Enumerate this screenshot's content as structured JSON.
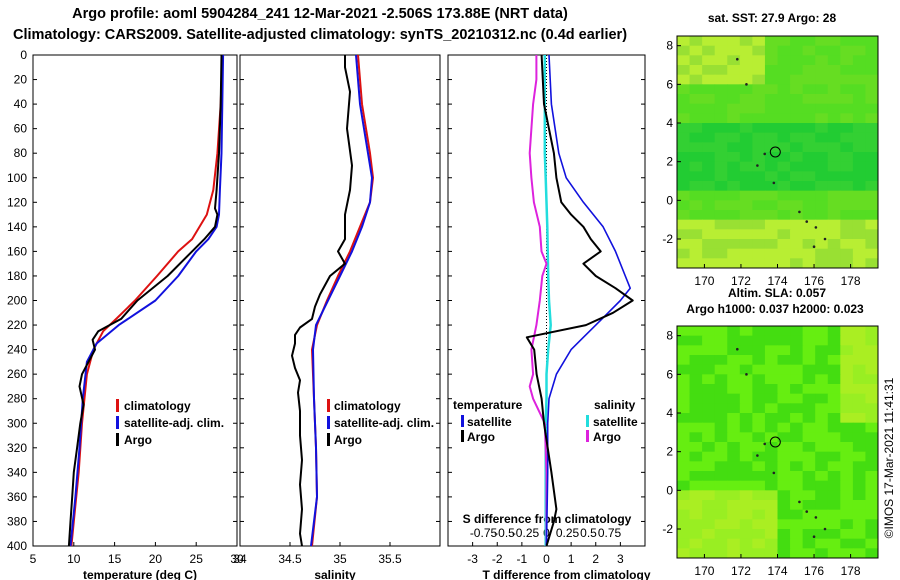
{
  "titles": {
    "line1": "Argo profile: aoml 5904284_241 12-Mar-2021 -2.506S 173.88E (NRT data)",
    "line2": "Climatology: CARS2009. Satellite-adjusted climatology: synTS_20210312.nc (0.4d earlier)"
  },
  "colors": {
    "climatology": "#dd1111",
    "satellite": "#1111dd",
    "argo": "#000000",
    "cyan": "#22dddd",
    "magenta": "#dd22dd",
    "map_green": "#22cc22",
    "map_light": "#99ee22"
  },
  "depth_axis": {
    "ticks": [
      0,
      20,
      40,
      60,
      80,
      100,
      120,
      140,
      160,
      180,
      200,
      220,
      240,
      260,
      280,
      300,
      320,
      340,
      360,
      380,
      400
    ],
    "range": [
      0,
      400
    ]
  },
  "chart_data": [
    {
      "type": "line",
      "panel": "temperature",
      "xlabel": "temperature (deg C)",
      "ylabel": "depth",
      "xlim": [
        5,
        30
      ],
      "ylim": [
        400,
        0
      ],
      "x_ticks": [
        "5",
        "10",
        "15",
        "20",
        "25",
        "30"
      ],
      "legend": [
        "climatology",
        "satellite-adj. clim.",
        "Argo"
      ],
      "series": [
        {
          "name": "climatology",
          "depth": [
            0,
            40,
            80,
            110,
            130,
            150,
            160,
            180,
            200,
            215,
            225,
            240,
            260,
            300,
            340,
            380,
            400
          ],
          "values": [
            28.2,
            28.0,
            27.6,
            27.1,
            26.3,
            24.5,
            22.8,
            20.2,
            17.5,
            15.2,
            13.6,
            12.4,
            11.6,
            11.0,
            10.6,
            10.0,
            9.7
          ]
        },
        {
          "name": "satellite-adj. clim.",
          "depth": [
            0,
            40,
            80,
            110,
            130,
            140,
            150,
            160,
            180,
            200,
            220,
            235,
            250,
            280,
            320,
            360,
            400
          ],
          "values": [
            28.3,
            28.2,
            28.1,
            27.9,
            27.8,
            27.5,
            26.5,
            25.0,
            22.8,
            20.0,
            15.5,
            12.8,
            11.6,
            11.1,
            10.7,
            10.2,
            9.6
          ]
        },
        {
          "name": "Argo",
          "depth": [
            0,
            40,
            80,
            110,
            125,
            130,
            140,
            150,
            160,
            180,
            200,
            215,
            225,
            232,
            240,
            250,
            260,
            270,
            285,
            300,
            320,
            340,
            360,
            380,
            400
          ],
          "values": [
            28.1,
            28.0,
            27.8,
            27.5,
            27.3,
            27.6,
            27.3,
            26.0,
            24.5,
            21.5,
            17.8,
            15.8,
            13.0,
            12.3,
            12.6,
            11.8,
            11.0,
            10.7,
            11.2,
            10.8,
            10.4,
            10.0,
            9.8,
            9.6,
            9.4
          ]
        }
      ]
    },
    {
      "type": "line",
      "panel": "salinity",
      "xlabel": "salinity",
      "ylabel": "depth",
      "xlim": [
        34,
        36
      ],
      "ylim": [
        400,
        0
      ],
      "x_ticks": [
        "34",
        "34.5",
        "35",
        "35.5"
      ],
      "legend": [
        "climatology",
        "satellite-adj. clim.",
        "Argo"
      ],
      "series": [
        {
          "name": "climatology",
          "depth": [
            0,
            40,
            80,
            100,
            120,
            140,
            160,
            180,
            200,
            220,
            240,
            280,
            320,
            360,
            400
          ],
          "values": [
            35.18,
            35.22,
            35.3,
            35.33,
            35.3,
            35.2,
            35.1,
            34.98,
            34.87,
            34.77,
            34.72,
            34.74,
            34.76,
            34.77,
            34.72
          ]
        },
        {
          "name": "satellite-adj. clim.",
          "depth": [
            0,
            40,
            80,
            100,
            120,
            140,
            160,
            180,
            200,
            220,
            240,
            280,
            320,
            360,
            400
          ],
          "values": [
            35.16,
            35.2,
            35.28,
            35.32,
            35.3,
            35.22,
            35.12,
            35.0,
            34.88,
            34.76,
            34.73,
            34.74,
            34.76,
            34.77,
            34.71
          ]
        },
        {
          "name": "Argo",
          "depth": [
            0,
            10,
            30,
            60,
            90,
            110,
            130,
            150,
            160,
            170,
            180,
            195,
            205,
            215,
            222,
            228,
            235,
            245,
            255,
            265,
            275,
            290,
            310,
            330,
            350,
            370,
            390,
            400
          ],
          "values": [
            35.05,
            35.05,
            35.1,
            35.07,
            35.12,
            35.1,
            35.05,
            35.05,
            34.98,
            35.05,
            34.9,
            34.8,
            34.75,
            34.72,
            34.6,
            34.55,
            34.55,
            34.52,
            34.55,
            34.6,
            34.58,
            34.6,
            34.6,
            34.62,
            34.6,
            34.62,
            34.6,
            34.62
          ]
        }
      ]
    },
    {
      "type": "line",
      "panel": "differences",
      "xlabel": "T difference from climatology",
      "x2label": "S difference from climatology",
      "ylabel": "depth",
      "xlim": [
        -4,
        4
      ],
      "ylim": [
        400,
        0
      ],
      "x_ticks": [
        "-3",
        "-2",
        "-1",
        "0",
        "1",
        "2",
        "3"
      ],
      "x2_ticks": [
        "-0.75",
        "-0.5",
        "-0.25",
        "0",
        "0.25",
        "0.5",
        "0.75"
      ],
      "legend_groups": {
        "temperature": [
          "satellite",
          "Argo"
        ],
        "salinity": [
          "satellite",
          "Argo"
        ]
      },
      "series": [
        {
          "name": "temperature satellite",
          "depth": [
            0,
            40,
            80,
            100,
            120,
            140,
            160,
            180,
            190,
            200,
            210,
            220,
            230,
            240,
            260,
            280,
            300,
            340,
            400
          ],
          "values": [
            0.1,
            0.2,
            0.5,
            0.8,
            1.5,
            2.3,
            2.8,
            3.2,
            3.4,
            3.0,
            2.5,
            2.0,
            1.5,
            1.0,
            0.4,
            0.1,
            0.05,
            0.05,
            0.0
          ]
        },
        {
          "name": "temperature Argo",
          "depth": [
            0,
            40,
            80,
            100,
            120,
            130,
            140,
            150,
            160,
            170,
            180,
            190,
            200,
            210,
            220,
            230,
            240,
            260,
            280,
            300,
            340,
            370,
            380,
            400
          ],
          "values": [
            -0.2,
            -0.1,
            0.3,
            0.4,
            0.6,
            1.0,
            1.5,
            1.8,
            2.2,
            1.5,
            2.0,
            2.8,
            3.5,
            2.7,
            1.6,
            -0.8,
            -0.5,
            -0.4,
            -0.2,
            -0.1,
            0.2,
            0.4,
            0.3,
            0.0
          ]
        },
        {
          "name": "salinity satellite",
          "depth": [
            0,
            40,
            80,
            100,
            140,
            180,
            200,
            220,
            240,
            260,
            280,
            300,
            340,
            400
          ],
          "values": [
            -0.02,
            -0.02,
            -0.02,
            -0.01,
            0.01,
            0.02,
            0.03,
            0.05,
            0.02,
            0.0,
            0.0,
            -0.01,
            -0.01,
            -0.01
          ]
        },
        {
          "name": "salinity Argo",
          "depth": [
            0,
            20,
            40,
            60,
            80,
            100,
            120,
            140,
            160,
            170,
            180,
            200,
            220,
            240,
            260,
            270,
            280,
            300,
            340,
            400
          ],
          "values": [
            -0.12,
            -0.12,
            -0.16,
            -0.18,
            -0.2,
            -0.18,
            -0.15,
            -0.08,
            -0.06,
            0.0,
            -0.05,
            -0.08,
            -0.12,
            -0.18,
            -0.16,
            -0.2,
            -0.16,
            -0.02,
            0.0,
            0.0
          ]
        }
      ]
    },
    {
      "type": "heatmap",
      "panel": "sst_map",
      "title": "sat. SST: 27.9 Argo: 28",
      "xlim": [
        168.5,
        179.5
      ],
      "ylim": [
        -3.5,
        8.5
      ],
      "x_ticks": [
        "170",
        "172",
        "174",
        "176",
        "178"
      ],
      "y_ticks": [
        "-2",
        "0",
        "2",
        "4",
        "6",
        "8"
      ],
      "argo_position": {
        "lon": 173.88,
        "lat": 2.5
      }
    },
    {
      "type": "heatmap",
      "panel": "sla_map",
      "title": "Altim. SLA: 0.057",
      "subtitle": "Argo h1000: 0.037 h2000: 0.023",
      "xlim": [
        168.5,
        179.5
      ],
      "ylim": [
        -3.5,
        8.5
      ],
      "x_ticks": [
        "170",
        "172",
        "174",
        "176",
        "178"
      ],
      "y_ticks": [
        "-2",
        "0",
        "2",
        "4",
        "6",
        "8"
      ],
      "argo_position": {
        "lon": 173.88,
        "lat": 2.5
      }
    }
  ],
  "footer": {
    "stamp": "©IMOS 17-Mar-2021 11:41:31"
  }
}
